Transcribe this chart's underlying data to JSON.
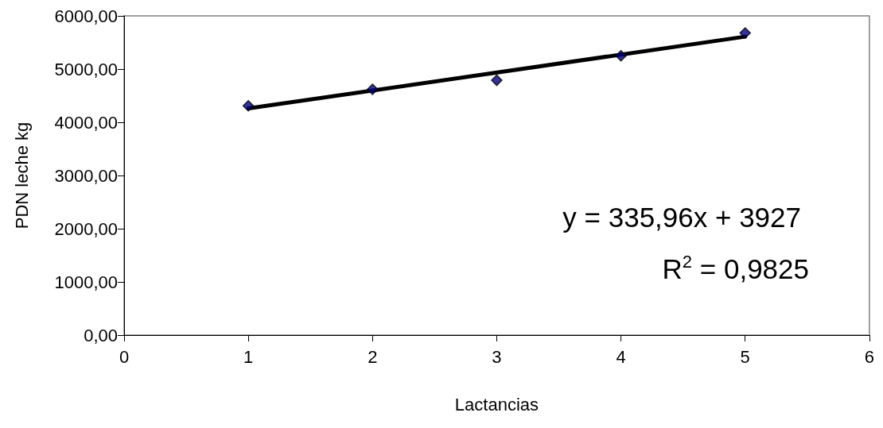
{
  "chart_data": {
    "type": "scatter",
    "xlabel": "Lactancias",
    "ylabel": "PDN leche kg",
    "x": [
      1,
      2,
      3,
      4,
      5
    ],
    "series": [
      {
        "color": "#000080",
        "marker": "diamond",
        "values": [
          4310,
          4620,
          4790,
          5250,
          5680
        ]
      },
      {
        "type": "line",
        "color": "#000000",
        "marker": "none",
        "line_style": "solid",
        "x": [
          1,
          5
        ],
        "values": [
          4260,
          5610
        ]
      }
    ],
    "xlim": [
      0,
      6
    ],
    "xticks": [
      0,
      1,
      2,
      3,
      4,
      5,
      6
    ],
    "ylim": [
      0,
      6000
    ],
    "yticks": [
      {
        "value": 0,
        "label": "0,00"
      },
      {
        "value": 1000,
        "label": "1000,00"
      },
      {
        "value": 2000,
        "label": "2000,00"
      },
      {
        "value": 3000,
        "label": "3000,00"
      },
      {
        "value": 4000,
        "label": "4000,00"
      },
      {
        "value": 5000,
        "label": "5000,00"
      },
      {
        "value": 6000,
        "label": "6000,00"
      }
    ],
    "grid": false,
    "annotations": [
      "y = 335,96x + 3927",
      "R$^{2}$ = 0,9825"
    ]
  }
}
